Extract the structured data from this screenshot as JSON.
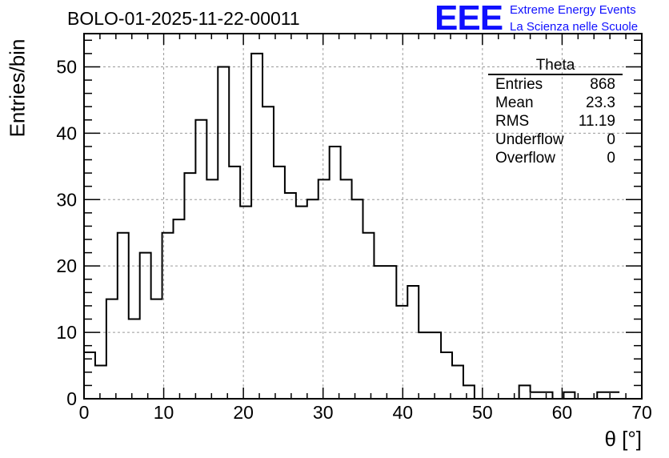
{
  "header": {
    "run_title": "BOLO-01-2025-11-22-00011",
    "logo_text": "EEE",
    "logo_line1": "Extreme Energy Events",
    "logo_line2": "La Scienza nelle Scuole",
    "logo_color": "#1010ff"
  },
  "stats_box": {
    "title": "Theta",
    "rows": [
      {
        "label": "Entries",
        "value": "868"
      },
      {
        "label": "Mean",
        "value": "23.3"
      },
      {
        "label": "RMS",
        "value": "11.19"
      },
      {
        "label": "Underflow",
        "value": "0"
      },
      {
        "label": "Overflow",
        "value": "0"
      }
    ]
  },
  "chart_data": {
    "type": "histogram",
    "title": "",
    "xlabel": "θ [°]",
    "ylabel": "Entries/bin",
    "xlim": [
      0,
      70
    ],
    "ylim": [
      0,
      55
    ],
    "x_ticks": [
      0,
      10,
      20,
      30,
      40,
      50,
      60,
      70
    ],
    "y_ticks": [
      0,
      10,
      20,
      30,
      40,
      50
    ],
    "grid": true,
    "bin_width": 1.4,
    "bin_start": 0,
    "counts": [
      7,
      5,
      15,
      25,
      12,
      22,
      15,
      25,
      27,
      34,
      42,
      33,
      50,
      35,
      29,
      52,
      44,
      35,
      31,
      29,
      30,
      33,
      38,
      33,
      30,
      25,
      20,
      20,
      14,
      17,
      10,
      10,
      7,
      5,
      2,
      0,
      0,
      0,
      0,
      2,
      1,
      1,
      0,
      1,
      0,
      0,
      1,
      1
    ],
    "line_color": "#000000"
  }
}
